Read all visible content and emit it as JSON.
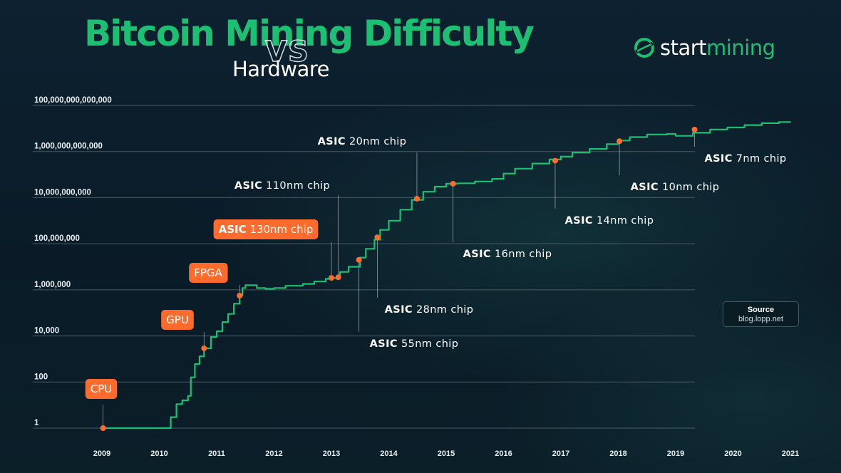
{
  "header": {
    "title": "Bitcoin Mining Difficulty",
    "vs": "VS",
    "subtitle": "Hardware"
  },
  "logo": {
    "part1": "start",
    "part2": "mining",
    "icon": "startmining-swirl-icon"
  },
  "source": {
    "title": "Source",
    "value": "blog.lopp.net"
  },
  "colors": {
    "background": "#0b1c28",
    "line": "#1dbf73",
    "marker": "#ff6b2c",
    "pill": "#ff6b2c",
    "grid": "#56656d"
  },
  "chart_data": {
    "type": "line",
    "title": "Bitcoin Mining Difficulty",
    "ylabel": "",
    "xlabel": "",
    "yscale": "log",
    "xlim": [
      2009,
      2021
    ],
    "ylim": [
      1,
      100000000000000
    ],
    "y_ticks": [
      {
        "value": 1,
        "label": "1"
      },
      {
        "value": 100,
        "label": "100"
      },
      {
        "value": 10000,
        "label": "10,000"
      },
      {
        "value": 1000000,
        "label": "1,000,000"
      },
      {
        "value": 100000000,
        "label": "100,000,000"
      },
      {
        "value": 10000000000,
        "label": "10,000,000,000"
      },
      {
        "value": 1000000000000,
        "label": "1,000,000,000,000"
      },
      {
        "value": 100000000000000,
        "label": "100,000,000,000,000"
      }
    ],
    "x_ticks": [
      2009,
      2010,
      2011,
      2012,
      2013,
      2014,
      2015,
      2016,
      2017,
      2018,
      2019,
      2020,
      2021
    ],
    "grid": "horizontal",
    "series": [
      {
        "x": [
          2009.0,
          2010.0,
          2010.1,
          2010.2,
          2010.3,
          2010.4,
          2010.5,
          2010.55,
          2010.62,
          2010.7,
          2010.78,
          2010.9,
          2011.0,
          2011.1,
          2011.2,
          2011.3,
          2011.4,
          2011.45,
          2011.5,
          2011.7,
          2011.85,
          2012.0,
          2012.2,
          2012.5,
          2012.7,
          2012.9,
          2013.0,
          2013.15,
          2013.3,
          2013.5,
          2013.6,
          2013.75,
          2013.85,
          2014.0,
          2014.2,
          2014.4,
          2014.6,
          2014.8,
          2015.0,
          2015.2,
          2015.5,
          2015.8,
          2016.0,
          2016.2,
          2016.5,
          2016.8,
          2017.0,
          2017.2,
          2017.5,
          2017.8,
          2018.0,
          2018.2,
          2018.5,
          2018.85,
          2019.0,
          2019.3,
          2019.6,
          2019.9,
          2020.2,
          2020.5,
          2020.8,
          2021.0
        ],
        "y": [
          1,
          1,
          1,
          3,
          11,
          16,
          25,
          160,
          600,
          1300,
          2900,
          9000,
          16000,
          40000,
          90000,
          250000,
          560000,
          1200000,
          1600000,
          1200000,
          1100000,
          1200000,
          1500000,
          1800000,
          2300000,
          3000000,
          3300000,
          6000000,
          10000000,
          25000000,
          60000000,
          150000000,
          400000000,
          1000000000,
          3000000000,
          8000000000,
          18000000000,
          30000000000,
          40000000000,
          42000000000,
          50000000000,
          65000000000,
          110000000000,
          180000000000,
          300000000000,
          450000000000,
          600000000000,
          900000000000,
          1300000000000,
          2100000000000,
          3000000000000,
          4200000000000,
          5500000000000,
          5800000000000,
          4800000000000,
          6500000000000,
          9000000000000,
          11000000000000,
          14000000000000,
          17000000000000,
          19000000000000,
          20000000000000
        ]
      }
    ],
    "annotations": [
      {
        "bold": "",
        "text": "CPU",
        "style": "pill",
        "x": 2009.02,
        "y": 1
      },
      {
        "bold": "",
        "text": "GPU",
        "style": "pill",
        "x": 2010.78,
        "y": 2900
      },
      {
        "bold": "",
        "text": "FPGA",
        "style": "pill",
        "x": 2011.4,
        "y": 560000
      },
      {
        "bold": "ASIC",
        "text": " 130nm chip",
        "style": "pill",
        "x": 2013.0,
        "y": 3300000
      },
      {
        "bold": "ASIC",
        "text": " 110nm chip",
        "style": "text",
        "x": 2013.12,
        "y": 3500000
      },
      {
        "bold": "ASIC",
        "text": " 55nm chip",
        "style": "text",
        "x": 2013.48,
        "y": 20000000
      },
      {
        "bold": "ASIC",
        "text": " 28nm chip",
        "style": "text",
        "x": 2013.8,
        "y": 190000000
      },
      {
        "bold": "ASIC",
        "text": " 20nm chip",
        "style": "text",
        "x": 2014.49,
        "y": 9000000000
      },
      {
        "bold": "ASIC",
        "text": " 16nm chip",
        "style": "text",
        "x": 2015.12,
        "y": 40000000000
      },
      {
        "bold": "ASIC",
        "text": " 14nm chip",
        "style": "text",
        "x": 2016.9,
        "y": 400000000000
      },
      {
        "bold": "ASIC",
        "text": " 10nm chip",
        "style": "text",
        "x": 2018.02,
        "y": 2800000000000
      },
      {
        "bold": "ASIC",
        "text": " 7nm chip",
        "style": "text",
        "x": 2019.33,
        "y": 9000000000000
      }
    ]
  }
}
